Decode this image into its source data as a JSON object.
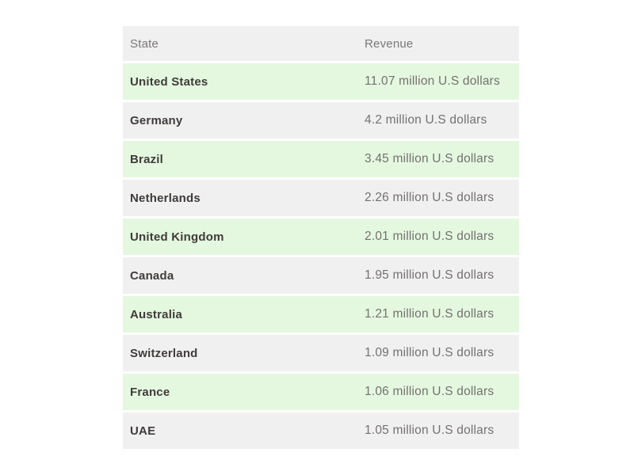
{
  "colors": {
    "page_background": "#ffffff",
    "header_row_background": "#f0f0f0",
    "even_row_background": "#f0f0f0",
    "green_row_background": "#e4f8df",
    "state_text": "#403b3a",
    "revenue_text": "#757070",
    "header_text": "#7b7777"
  },
  "table": {
    "header": {
      "state": "State",
      "revenue": "Revenue"
    },
    "rows": [
      {
        "state": "United States",
        "revenue": "11.07 million U.S dollars"
      },
      {
        "state": "Germany",
        "revenue": "4.2 million U.S dollars"
      },
      {
        "state": "Brazil",
        "revenue": "3.45 million U.S dollars"
      },
      {
        "state": "Netherlands",
        "revenue": "2.26 million U.S dollars"
      },
      {
        "state": "United Kingdom",
        "revenue": "2.01 million U.S dollars"
      },
      {
        "state": "Canada",
        "revenue": "1.95 million U.S dollars"
      },
      {
        "state": "Australia",
        "revenue": "1.21 million U.S dollars"
      },
      {
        "state": "Switzerland",
        "revenue": "1.09 million U.S dollars"
      },
      {
        "state": "France",
        "revenue": "1.06 million U.S dollars"
      },
      {
        "state": "UAE",
        "revenue": "1.05 million U.S dollars"
      }
    ]
  },
  "chart_data": {
    "type": "table",
    "title": "",
    "columns": [
      "State",
      "Revenue"
    ],
    "categories": [
      "United States",
      "Germany",
      "Brazil",
      "Netherlands",
      "United Kingdom",
      "Canada",
      "Australia",
      "Switzerland",
      "France",
      "UAE"
    ],
    "values": [
      11.07,
      4.2,
      3.45,
      2.26,
      2.01,
      1.95,
      1.21,
      1.09,
      1.06,
      1.05
    ],
    "unit": "million U.S dollars",
    "layout": "alternating row shading, no gridlines, no borders"
  }
}
